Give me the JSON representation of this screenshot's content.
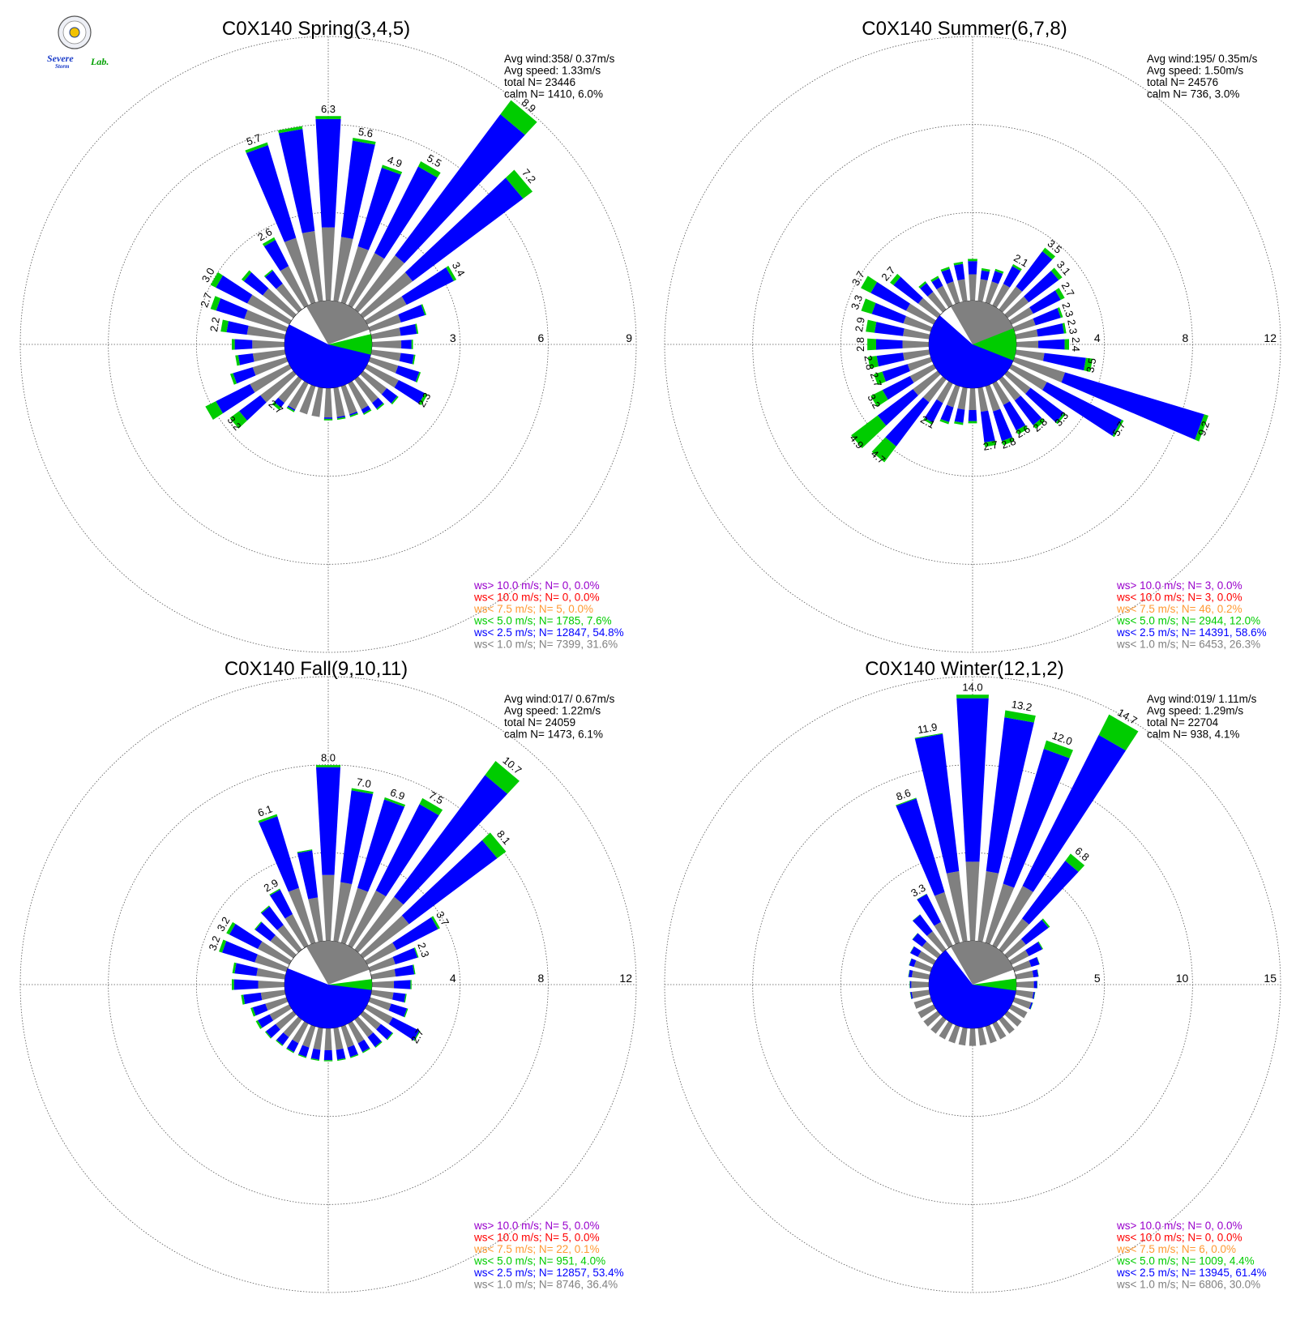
{
  "logo": {
    "line1": "Severe",
    "line2": "Storm",
    "line3": "Lab."
  },
  "colors": {
    "gray": "#808080",
    "blue": "#0000ff",
    "green": "#00cc00",
    "orange": "#ff9933",
    "red": "#ff0000",
    "purple": "#9900cc",
    "calm": "#ffffff"
  },
  "chart_data": [
    {
      "type": "windrose",
      "title": "C0X140 Spring(3,4,5)",
      "rmax": 9,
      "ticks": [
        3,
        6,
        9
      ],
      "stats": {
        "avg_wind": "Avg wind:358/ 0.37m/s",
        "avg_speed": "Avg speed: 1.33m/s",
        "total": "total N=       23446",
        "calm": "calm N=   1410,   6.0%"
      },
      "legend": [
        "ws> 10.0 m/s; N=      0,  0.0%",
        "ws< 10.0 m/s; N=      0,  0.0%",
        "ws<  7.5 m/s; N=      5,  0.0%",
        "ws<  5.0 m/s; N=  1785,  7.6%",
        "ws<  2.5 m/s; N= 12847, 54.8%",
        "ws<  1.0 m/s; N=  7399, 31.6%"
      ],
      "directions_deg": [
        0,
        10,
        20,
        30,
        40,
        50,
        60,
        70,
        80,
        90,
        100,
        110,
        120,
        130,
        140,
        150,
        160,
        170,
        180,
        190,
        200,
        210,
        220,
        230,
        240,
        250,
        260,
        270,
        280,
        290,
        300,
        310,
        320,
        330,
        340,
        350
      ],
      "totals": [
        6.3,
        5.6,
        4.9,
        5.5,
        8.9,
        7.2,
        3.4,
        2.0,
        1.6,
        1.4,
        1.5,
        1.8,
        2.3,
        1.5,
        1.3,
        1.2,
        1.1,
        1.1,
        1.1,
        1.0,
        1.0,
        1.1,
        1.3,
        2.7,
        3.2,
        2.0,
        1.7,
        1.8,
        2.2,
        2.7,
        3.0,
        2.2,
        1.7,
        2.6,
        5.7,
        6.0
      ],
      "gray": [
        2.5,
        2.2,
        2.0,
        2.0,
        2.3,
        2.1,
        1.5,
        1.1,
        1.0,
        1.0,
        1.0,
        1.0,
        1.2,
        1.0,
        1.0,
        1.0,
        1.0,
        1.0,
        1.0,
        1.0,
        1.0,
        1.0,
        1.0,
        1.4,
        1.5,
        1.2,
        1.1,
        1.1,
        1.3,
        1.5,
        1.6,
        1.3,
        1.1,
        1.5,
        2.3,
        2.4
      ],
      "green": [
        0.1,
        0.1,
        0.1,
        0.2,
        0.6,
        0.4,
        0.1,
        0.05,
        0.05,
        0.05,
        0.05,
        0.05,
        0.1,
        0.05,
        0.05,
        0.05,
        0.05,
        0.05,
        0.05,
        0.05,
        0.05,
        0.05,
        0.1,
        0.4,
        0.4,
        0.1,
        0.1,
        0.1,
        0.2,
        0.2,
        0.2,
        0.1,
        0.05,
        0.1,
        0.1,
        0.1
      ],
      "labels": [
        {
          "deg": 0,
          "text": "6.3"
        },
        {
          "deg": 10,
          "text": "5.6"
        },
        {
          "deg": 20,
          "text": "4.9"
        },
        {
          "deg": 30,
          "text": "5.5"
        },
        {
          "deg": 40,
          "text": "8.9"
        },
        {
          "deg": 50,
          "text": "7.2"
        },
        {
          "deg": 60,
          "text": "3.4"
        },
        {
          "deg": 120,
          "text": "2.3"
        },
        {
          "deg": 220,
          "text": "2.7"
        },
        {
          "deg": 230,
          "text": "3.2"
        },
        {
          "deg": 280,
          "text": "2.2"
        },
        {
          "deg": 290,
          "text": "2.7"
        },
        {
          "deg": 300,
          "text": "3.0"
        },
        {
          "deg": 330,
          "text": "2.6"
        },
        {
          "deg": 340,
          "text": "5.7"
        }
      ],
      "calm_pie": {
        "gray_pct": 31.6,
        "blue_pct": 54.8,
        "green_pct": 7.6
      }
    },
    {
      "type": "windrose",
      "title": "C0X140 Summer(6,7,8)",
      "rmax": 12,
      "ticks": [
        4,
        8,
        12
      ],
      "stats": {
        "avg_wind": "Avg wind:195/ 0.35m/s",
        "avg_speed": "Avg speed: 1.50m/s",
        "total": "total N=       24576",
        "calm": "calm N=    736,   3.0%"
      },
      "legend": [
        "ws> 10.0 m/s; N=      3,  0.0%",
        "ws< 10.0 m/s; N=      3,  0.0%",
        "ws<  7.5 m/s; N=     46,  0.2%",
        "ws<  5.0 m/s; N=  2944, 12.0%",
        "ws<  2.5 m/s; N= 14391, 58.6%",
        "ws<  1.0 m/s; N=  6453, 26.3%"
      ],
      "directions_deg": [
        0,
        10,
        20,
        30,
        40,
        50,
        60,
        70,
        80,
        90,
        100,
        110,
        120,
        130,
        140,
        150,
        160,
        170,
        180,
        190,
        200,
        210,
        220,
        230,
        240,
        250,
        260,
        270,
        280,
        290,
        300,
        310,
        320,
        330,
        340,
        350
      ],
      "totals": [
        1.9,
        1.5,
        1.6,
        2.1,
        3.5,
        3.1,
        2.7,
        2.3,
        2.3,
        2.4,
        3.5,
        9.2,
        5.7,
        3.3,
        2.8,
        2.6,
        2.8,
        2.7,
        1.6,
        1.7,
        1.8,
        2.1,
        4.7,
        4.9,
        3.2,
        2.7,
        2.8,
        2.8,
        2.9,
        3.3,
        3.7,
        2.7,
        1.6,
        1.5,
        1.7,
        1.8
      ],
      "gray": [
        1.2,
        1.0,
        1.0,
        1.1,
        1.3,
        1.2,
        1.1,
        1.0,
        1.0,
        1.0,
        1.3,
        2.4,
        1.8,
        1.3,
        1.2,
        1.1,
        1.2,
        1.1,
        1.0,
        1.0,
        1.0,
        1.0,
        1.3,
        1.4,
        1.2,
        1.1,
        1.2,
        1.2,
        1.2,
        1.3,
        1.4,
        1.1,
        1.0,
        1.0,
        1.0,
        1.0
      ],
      "green": [
        0.1,
        0.1,
        0.1,
        0.1,
        0.2,
        0.2,
        0.2,
        0.1,
        0.1,
        0.2,
        0.3,
        0.2,
        0.1,
        0.1,
        0.2,
        0.2,
        0.2,
        0.2,
        0.1,
        0.1,
        0.1,
        0.1,
        0.9,
        1.5,
        0.6,
        0.4,
        0.4,
        0.4,
        0.4,
        0.5,
        0.5,
        0.2,
        0.1,
        0.1,
        0.1,
        0.1
      ],
      "labels": [
        {
          "deg": 30,
          "text": "2.1"
        },
        {
          "deg": 40,
          "text": "3.5"
        },
        {
          "deg": 50,
          "text": "3.1"
        },
        {
          "deg": 60,
          "text": "2.7"
        },
        {
          "deg": 70,
          "text": "2.3"
        },
        {
          "deg": 80,
          "text": "2.3"
        },
        {
          "deg": 90,
          "text": "2.4"
        },
        {
          "deg": 100,
          "text": "3.5"
        },
        {
          "deg": 110,
          "text": "9.2"
        },
        {
          "deg": 120,
          "text": "5.7"
        },
        {
          "deg": 130,
          "text": "3.3"
        },
        {
          "deg": 140,
          "text": "2.8"
        },
        {
          "deg": 150,
          "text": "2.6"
        },
        {
          "deg": 160,
          "text": "2.8"
        },
        {
          "deg": 170,
          "text": "2.7"
        },
        {
          "deg": 210,
          "text": "2.1"
        },
        {
          "deg": 220,
          "text": "4.7"
        },
        {
          "deg": 230,
          "text": "4.9"
        },
        {
          "deg": 240,
          "text": "3.2"
        },
        {
          "deg": 250,
          "text": "2.7"
        },
        {
          "deg": 260,
          "text": "2.8"
        },
        {
          "deg": 270,
          "text": "2.8"
        },
        {
          "deg": 280,
          "text": "2.9"
        },
        {
          "deg": 290,
          "text": "3.3"
        },
        {
          "deg": 300,
          "text": "3.7"
        },
        {
          "deg": 310,
          "text": "2.7"
        }
      ],
      "calm_pie": {
        "gray_pct": 26.3,
        "blue_pct": 58.6,
        "green_pct": 12.0
      }
    },
    {
      "type": "windrose",
      "title": "C0X140 Fall(9,10,11)",
      "rmax": 12,
      "ticks": [
        4,
        8,
        12
      ],
      "stats": {
        "avg_wind": "Avg wind:017/ 0.67m/s",
        "avg_speed": "Avg speed: 1.22m/s",
        "total": "total N=       24059",
        "calm": "calm N=   1473,   6.1%"
      },
      "legend": [
        "ws> 10.0 m/s; N=      5,  0.0%",
        "ws< 10.0 m/s; N=      5,  0.0%",
        "ws<  7.5 m/s; N=     22,  0.1%",
        "ws<  5.0 m/s; N=   951,  4.0%",
        "ws<  2.5 m/s; N= 12857, 53.4%",
        "ws<  1.0 m/s; N=  8746, 36.4%"
      ],
      "directions_deg": [
        0,
        10,
        20,
        30,
        40,
        50,
        60,
        70,
        80,
        90,
        100,
        110,
        120,
        130,
        140,
        150,
        160,
        170,
        180,
        190,
        200,
        210,
        220,
        230,
        240,
        250,
        260,
        270,
        280,
        290,
        300,
        310,
        320,
        330,
        340,
        350
      ],
      "totals": [
        8.0,
        7.0,
        6.9,
        7.5,
        10.7,
        8.1,
        3.7,
        2.3,
        2.0,
        1.8,
        1.6,
        1.8,
        2.7,
        1.7,
        1.6,
        1.5,
        1.5,
        1.5,
        1.5,
        1.5,
        1.5,
        1.5,
        1.5,
        1.6,
        1.7,
        1.7,
        2.0,
        2.4,
        2.4,
        3.2,
        3.2,
        2.2,
        2.5,
        2.9,
        6.1,
        4.2
      ],
      "gray": [
        3.0,
        2.7,
        2.6,
        2.8,
        3.0,
        2.6,
        1.5,
        1.2,
        1.1,
        1.0,
        1.0,
        1.0,
        1.3,
        1.0,
        1.0,
        1.0,
        1.0,
        1.0,
        1.0,
        1.0,
        1.0,
        1.0,
        1.0,
        1.0,
        1.0,
        1.0,
        1.1,
        1.2,
        1.3,
        1.5,
        1.6,
        1.3,
        1.4,
        1.6,
        2.6,
        2.0
      ],
      "green": [
        0.1,
        0.1,
        0.1,
        0.3,
        0.8,
        0.5,
        0.1,
        0.05,
        0.05,
        0.05,
        0.05,
        0.05,
        0.05,
        0.05,
        0.05,
        0.05,
        0.05,
        0.05,
        0.05,
        0.05,
        0.05,
        0.05,
        0.05,
        0.05,
        0.1,
        0.1,
        0.1,
        0.1,
        0.1,
        0.15,
        0.15,
        0.05,
        0.05,
        0.05,
        0.1,
        0.05
      ],
      "labels": [
        {
          "deg": 0,
          "text": "8.0"
        },
        {
          "deg": 10,
          "text": "7.0"
        },
        {
          "deg": 20,
          "text": "6.9"
        },
        {
          "deg": 30,
          "text": "7.5"
        },
        {
          "deg": 40,
          "text": "10.7"
        },
        {
          "deg": 50,
          "text": "8.1"
        },
        {
          "deg": 60,
          "text": "3.7"
        },
        {
          "deg": 70,
          "text": "2.3"
        },
        {
          "deg": 120,
          "text": "2.7"
        },
        {
          "deg": 290,
          "text": "3.2"
        },
        {
          "deg": 300,
          "text": "3.2"
        },
        {
          "deg": 330,
          "text": "2.9"
        },
        {
          "deg": 340,
          "text": "6.1"
        }
      ],
      "calm_pie": {
        "gray_pct": 36.4,
        "blue_pct": 53.4,
        "green_pct": 4.0
      }
    },
    {
      "type": "windrose",
      "title": "C0X140 Winter(12,1,2)",
      "rmax": 15,
      "ticks": [
        5,
        10,
        15
      ],
      "stats": {
        "avg_wind": "Avg wind:019/ 1.11m/s",
        "avg_speed": "Avg speed: 1.29m/s",
        "total": "total N=       22704",
        "calm": "calm N=    938,   4.1%"
      },
      "legend": [
        "ws> 10.0 m/s; N=      0,  0.0%",
        "ws< 10.0 m/s; N=      0,  0.0%",
        "ws<  7.5 m/s; N=      6,  0.0%",
        "ws<  5.0 m/s; N=  1009,  4.4%",
        "ws<  2.5 m/s; N= 13945, 61.4%",
        "ws<  1.0 m/s; N=  6806, 30.0%"
      ],
      "directions_deg": [
        0,
        10,
        20,
        30,
        40,
        50,
        60,
        70,
        80,
        90,
        100,
        110,
        120,
        130,
        140,
        150,
        160,
        170,
        180,
        190,
        200,
        210,
        220,
        230,
        240,
        250,
        260,
        270,
        280,
        290,
        300,
        310,
        320,
        330,
        340,
        350
      ],
      "totals": [
        14.0,
        13.2,
        12.0,
        14.7,
        6.8,
        3.0,
        2.0,
        1.5,
        1.3,
        1.2,
        1.1,
        1.1,
        1.0,
        1.0,
        1.0,
        1.0,
        1.0,
        1.0,
        1.0,
        1.0,
        1.0,
        1.0,
        1.0,
        1.0,
        1.0,
        1.0,
        1.1,
        1.1,
        1.2,
        1.3,
        1.5,
        1.8,
        2.5,
        3.3,
        8.6,
        11.9
      ],
      "gray": [
        4.5,
        4.0,
        3.5,
        3.8,
        2.2,
        1.3,
        1.1,
        1.0,
        1.0,
        1.0,
        1.0,
        1.0,
        1.0,
        1.0,
        1.0,
        1.0,
        1.0,
        1.0,
        1.0,
        1.0,
        1.0,
        1.0,
        1.0,
        1.0,
        1.0,
        1.0,
        1.0,
        1.0,
        1.0,
        1.0,
        1.0,
        1.1,
        1.3,
        1.5,
        3.0,
        4.0
      ],
      "green": [
        0.2,
        0.4,
        0.5,
        1.3,
        0.5,
        0.1,
        0.05,
        0.02,
        0.02,
        0.02,
        0.02,
        0.02,
        0.02,
        0.02,
        0.02,
        0.02,
        0.02,
        0.02,
        0.02,
        0.02,
        0.02,
        0.02,
        0.02,
        0.02,
        0.02,
        0.02,
        0.02,
        0.02,
        0.02,
        0.02,
        0.02,
        0.02,
        0.02,
        0.02,
        0.05,
        0.05
      ],
      "labels": [
        {
          "deg": 0,
          "text": "14.0"
        },
        {
          "deg": 10,
          "text": "13.2"
        },
        {
          "deg": 20,
          "text": "12.0"
        },
        {
          "deg": 30,
          "text": "14.7"
        },
        {
          "deg": 40,
          "text": "6.8"
        },
        {
          "deg": 330,
          "text": "3.3"
        },
        {
          "deg": 340,
          "text": "8.6"
        },
        {
          "deg": 350,
          "text": "11.9"
        }
      ],
      "calm_pie": {
        "gray_pct": 30.0,
        "blue_pct": 61.4,
        "green_pct": 4.4
      }
    }
  ]
}
